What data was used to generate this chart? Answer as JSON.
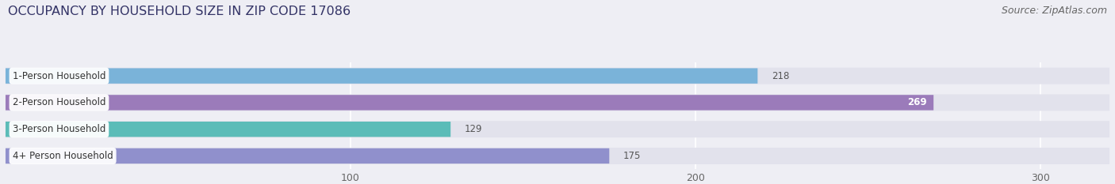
{
  "title": "OCCUPANCY BY HOUSEHOLD SIZE IN ZIP CODE 17086",
  "source": "Source: ZipAtlas.com",
  "categories": [
    "1-Person Household",
    "2-Person Household",
    "3-Person Household",
    "4+ Person Household"
  ],
  "values": [
    218,
    269,
    129,
    175
  ],
  "bar_colors": [
    "#7ab3d9",
    "#9b7bba",
    "#5bbcb8",
    "#9090cc"
  ],
  "label_colors": [
    "black",
    "white",
    "black",
    "black"
  ],
  "xlim": [
    0,
    320
  ],
  "xticks": [
    100,
    200,
    300
  ],
  "background_color": "#eeeef4",
  "bar_row_color": "#e2e2ec",
  "title_fontsize": 11.5,
  "source_fontsize": 9,
  "label_fontsize": 8.5,
  "value_fontsize": 8.5
}
